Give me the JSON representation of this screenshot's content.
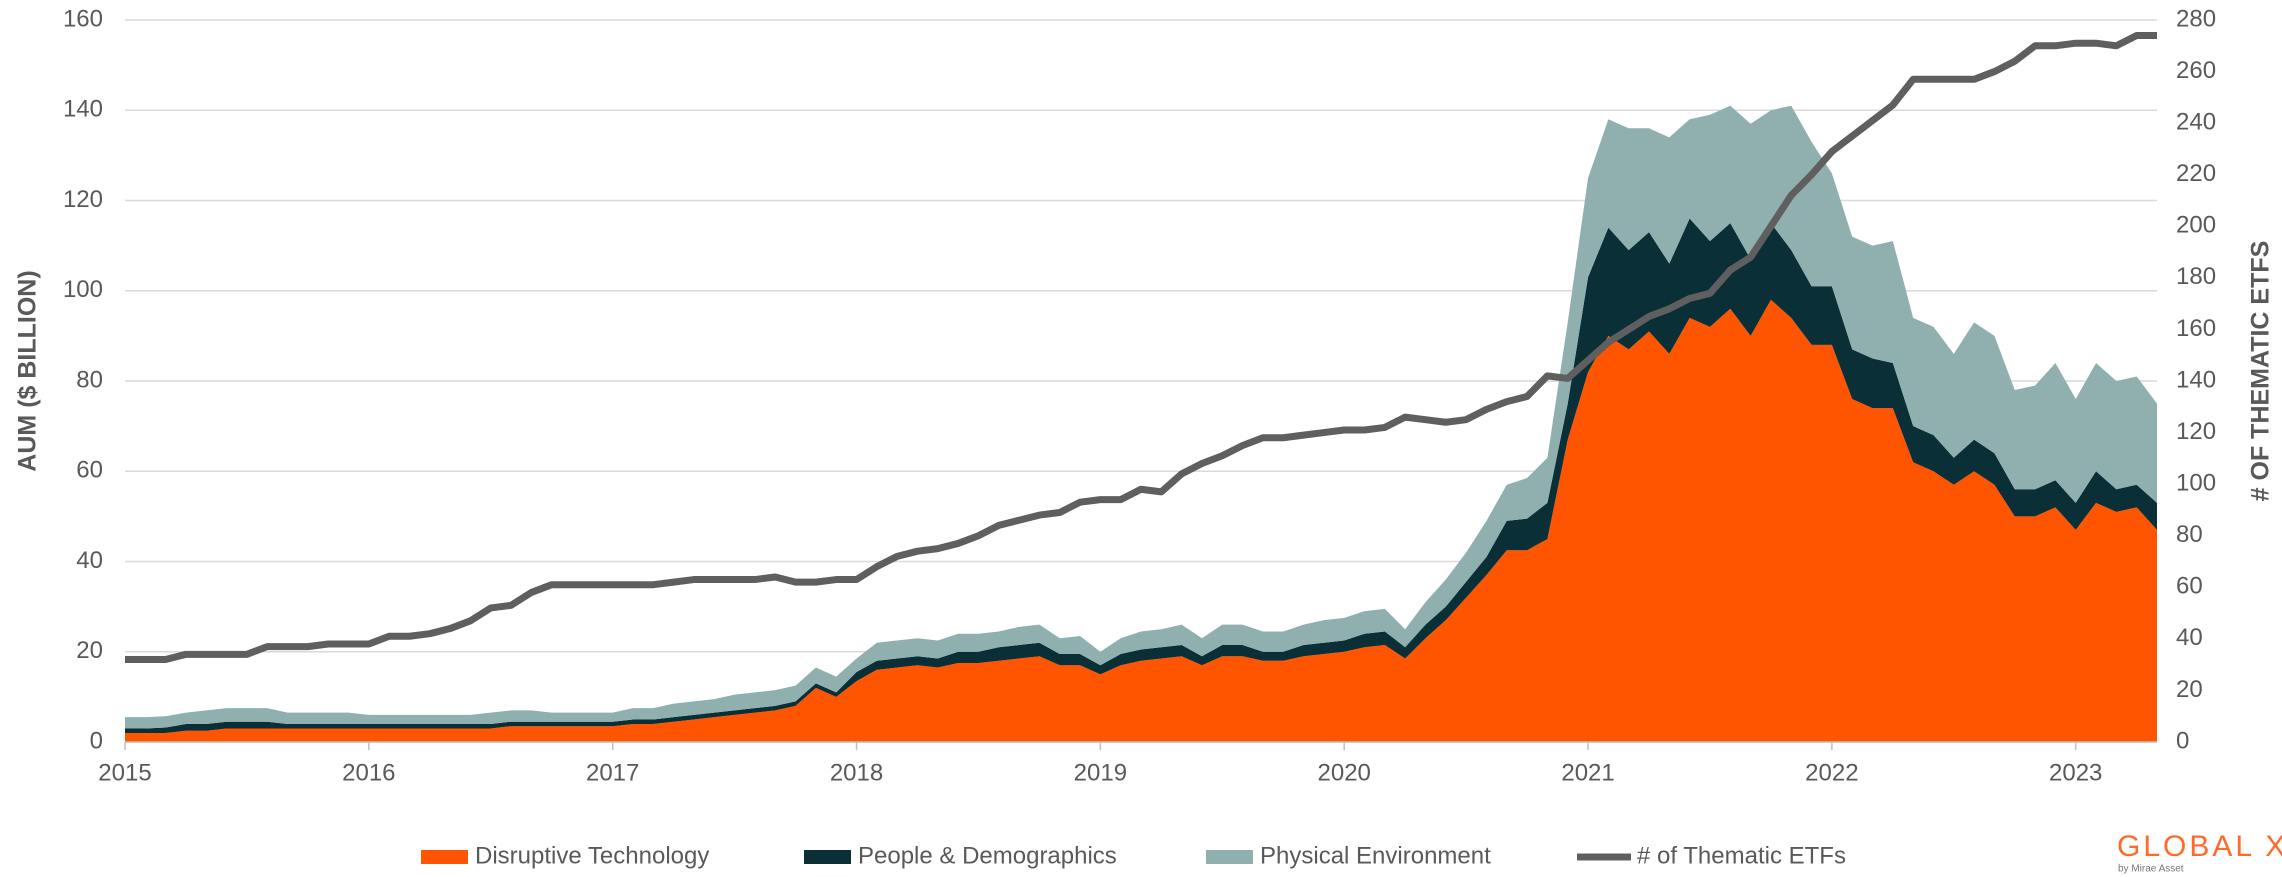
{
  "chart_data": {
    "type": "area",
    "ylabel": "AUM ($ BILLION)",
    "y2label": "# OF THEMATIC ETFS",
    "categories": [
      "2015",
      null,
      null,
      null,
      null,
      null,
      null,
      null,
      null,
      null,
      null,
      null,
      "2016",
      null,
      null,
      null,
      null,
      null,
      null,
      null,
      null,
      null,
      null,
      null,
      "2017",
      null,
      null,
      null,
      null,
      null,
      null,
      null,
      null,
      null,
      null,
      null,
      "2018",
      null,
      null,
      null,
      null,
      null,
      null,
      null,
      null,
      null,
      null,
      null,
      "2019",
      null,
      null,
      null,
      null,
      null,
      null,
      null,
      null,
      null,
      null,
      null,
      "2020",
      null,
      null,
      null,
      null,
      null,
      null,
      null,
      null,
      null,
      null,
      null,
      "2021",
      null,
      null,
      null,
      null,
      null,
      null,
      null,
      null,
      null,
      null,
      null,
      "2022",
      null,
      null,
      null,
      null,
      null,
      null,
      null,
      null,
      null,
      null,
      null,
      "2023",
      null,
      null,
      null,
      null
    ],
    "ylim": [
      0,
      160
    ],
    "yticks": [
      0,
      20,
      40,
      60,
      80,
      100,
      120,
      140,
      160
    ],
    "y2lim": [
      0,
      280
    ],
    "y2ticks": [
      0,
      20,
      40,
      60,
      80,
      100,
      120,
      140,
      160,
      180,
      200,
      220,
      240,
      260,
      280
    ],
    "grid": true,
    "series": [
      {
        "name": "Disruptive Technology",
        "color": "#ff5500",
        "values": [
          2,
          2,
          2,
          2.5,
          2.5,
          3,
          3,
          3,
          3,
          3,
          3,
          3,
          3,
          3,
          3,
          3,
          3,
          3,
          3,
          3.5,
          3.5,
          3.5,
          3.5,
          3.5,
          3.5,
          4,
          4,
          4.5,
          5,
          5.5,
          6,
          6.5,
          7,
          8,
          12,
          10,
          13.5,
          16,
          16.5,
          17,
          16.5,
          17.5,
          17.5,
          18,
          18.5,
          19,
          17,
          17,
          15,
          17,
          18,
          18.5,
          19,
          17,
          19,
          19,
          18,
          18,
          19,
          19.5,
          20,
          21,
          21.5,
          18.5,
          23,
          27,
          32,
          37,
          42.5,
          42.5,
          45,
          67,
          82,
          90,
          87,
          91,
          86,
          94,
          92,
          96,
          90,
          98,
          94,
          88,
          88,
          76,
          74,
          74,
          62,
          60,
          57,
          60,
          57,
          50,
          50,
          52,
          47,
          53,
          51,
          52,
          47
        ]
      },
      {
        "name": "People & Demographics",
        "color": "#0a2f36",
        "values": [
          1,
          1,
          1.2,
          1.5,
          1.5,
          1.5,
          1.5,
          1.5,
          1,
          1,
          1,
          1,
          1,
          1,
          1,
          1,
          1,
          1,
          1,
          1,
          1,
          1,
          1,
          1,
          1,
          1,
          1,
          1,
          1,
          1,
          1,
          1,
          1,
          1,
          1,
          1,
          2,
          2,
          2,
          2,
          2,
          2.5,
          2.5,
          3,
          3,
          3,
          2.5,
          2.5,
          2,
          2.5,
          2.5,
          2.5,
          2.5,
          2,
          2.5,
          2.5,
          2,
          2,
          2.5,
          2.5,
          2.5,
          3,
          3,
          2.5,
          3,
          3,
          3.5,
          4,
          6.5,
          7,
          8,
          8,
          21,
          24,
          22,
          22,
          20,
          22,
          19,
          19,
          17,
          17,
          15,
          13,
          13,
          11,
          11,
          10,
          8,
          8,
          6,
          7,
          7,
          6,
          6,
          6,
          6,
          7,
          5,
          5,
          6
        ]
      },
      {
        "name": "Physical Environment",
        "color": "#8fb0ae",
        "values": [
          2.5,
          2.5,
          2.5,
          2.5,
          3,
          3,
          3,
          3,
          2.5,
          2.5,
          2.5,
          2.5,
          2,
          2,
          2,
          2,
          2,
          2,
          2.5,
          2.5,
          2.5,
          2,
          2,
          2,
          2,
          2.5,
          2.5,
          3,
          3,
          3,
          3.5,
          3.5,
          3.5,
          3.5,
          3.5,
          3.5,
          3,
          4,
          4,
          4,
          4,
          4,
          4,
          3.5,
          4,
          4,
          3.5,
          4,
          3,
          3.5,
          4,
          4,
          4.5,
          4,
          4.5,
          4.5,
          4.5,
          4.5,
          4.5,
          5,
          5,
          5,
          5,
          4,
          5,
          6,
          6.5,
          8,
          8,
          9,
          10,
          18,
          22,
          24,
          27,
          23,
          28,
          22,
          28,
          26,
          30,
          25,
          32,
          32,
          25,
          25,
          25,
          27,
          24,
          24,
          23,
          26,
          26,
          22,
          23,
          26,
          23,
          24,
          24,
          24,
          22
        ]
      },
      {
        "name": "# of Thematic ETFs",
        "color": "#5f5f5f",
        "type": "line",
        "axis": "y2",
        "values": [
          32,
          32,
          32,
          34,
          34,
          34,
          34,
          37,
          37,
          37,
          38,
          38,
          38,
          41,
          41,
          42,
          44,
          47,
          52,
          53,
          58,
          61,
          61,
          61,
          61,
          61,
          61,
          62,
          63,
          63,
          63,
          63,
          64,
          62,
          62,
          63,
          63,
          68,
          72,
          74,
          75,
          77,
          80,
          84,
          86,
          88,
          89,
          93,
          94,
          94,
          98,
          97,
          104,
          108,
          111,
          115,
          118,
          118,
          119,
          120,
          121,
          121,
          122,
          126,
          125,
          124,
          125,
          129,
          132,
          134,
          142,
          141,
          148,
          155,
          160,
          165,
          168,
          172,
          174,
          183,
          188,
          200,
          212,
          220,
          229,
          235,
          241,
          247,
          257,
          257,
          257,
          257,
          260,
          264,
          270,
          270,
          271,
          271,
          270,
          274,
          274
        ]
      }
    ]
  },
  "logo": {
    "text": "GLOBAL X",
    "sub": "by Mirae Asset"
  }
}
